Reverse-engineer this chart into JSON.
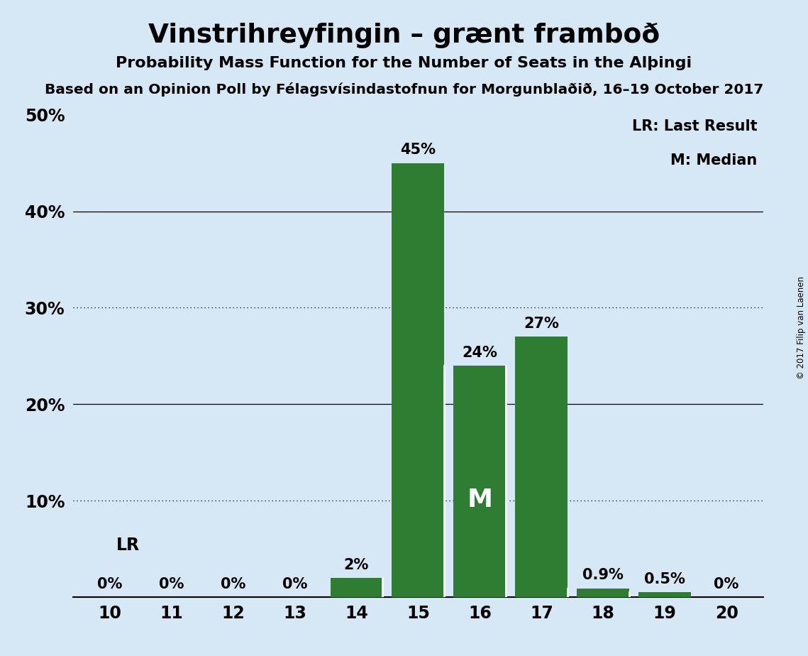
{
  "title": "Vinstrihreyfingin – grænt framboð",
  "subtitle": "Probability Mass Function for the Number of Seats in the Alþingi",
  "source_line": "Based on an Opinion Poll by Félagsvísindastofnun for Morgunblaðið, 16–19 October 2017",
  "copyright": "© 2017 Filip van Laenen",
  "seats": [
    10,
    11,
    12,
    13,
    14,
    15,
    16,
    17,
    18,
    19,
    20
  ],
  "probabilities": [
    0.0,
    0.0,
    0.0,
    0.0,
    2.0,
    45.0,
    24.0,
    27.0,
    0.9,
    0.5,
    0.0
  ],
  "bar_color": "#2e7d32",
  "background_color": "#d6e8f5",
  "bar_labels": [
    "0%",
    "0%",
    "0%",
    "0%",
    "2%",
    "45%",
    "24%",
    "27%",
    "0.9%",
    "0.5%",
    "0%"
  ],
  "last_result_seat": 10,
  "median_seat": 16,
  "ylim": [
    0,
    50
  ],
  "yticks": [
    0,
    10,
    20,
    30,
    40,
    50
  ],
  "ytick_labels": [
    "",
    "10%",
    "20%",
    "30%",
    "40%",
    "50%"
  ],
  "solid_gridlines": [
    20.0,
    40.0
  ],
  "dotted_gridlines": [
    10.0,
    30.0
  ],
  "legend_lr": "LR: Last Result",
  "legend_m": "M: Median",
  "lr_annotation": "LR",
  "m_annotation": "M"
}
